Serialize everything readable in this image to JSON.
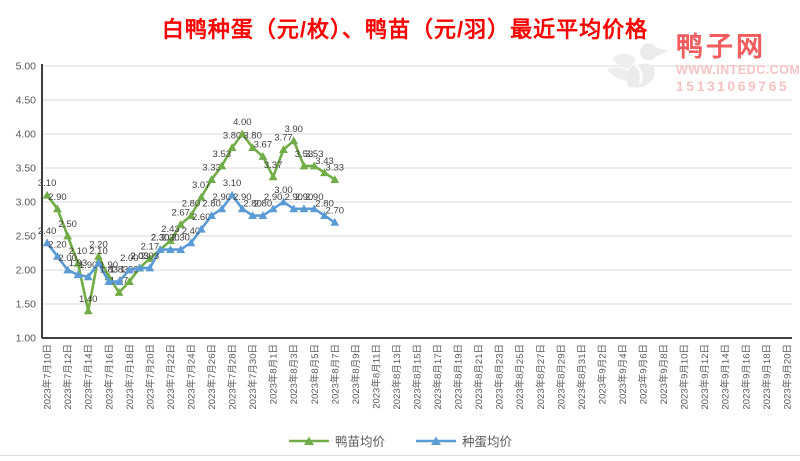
{
  "page": {
    "title": "白鸭种蛋（元/枚）、鸭苗（元/羽）最近平均价格"
  },
  "watermark": {
    "site_name": "鸭子网",
    "url": "WWW.INTEDC.COM",
    "phone": "15131069765",
    "logo": "duck-icon"
  },
  "colors": {
    "title_red": "#FF0000",
    "duckling_green": "#70AD47",
    "egg_blue": "#5B9BD5",
    "gridline": "#D9D9D9",
    "axis": "#262626",
    "axis_text": "#595959",
    "data_label_text": "#3f3f3f",
    "watermark_red": "#f25c5c",
    "watermark_pink": "#f6c3c3"
  },
  "chart_data": {
    "type": "line",
    "title": "白鸭种蛋（元/枚）、鸭苗（元/羽）最近平均价格",
    "ylabel": "",
    "xlabel": "",
    "ylim": [
      1.0,
      5.0
    ],
    "ytick_step": 0.5,
    "ytick_labels": [
      "5.00",
      "4.50",
      "4.00",
      "3.50",
      "3.00",
      "2.50",
      "2.00",
      "1.50",
      "1.00"
    ],
    "grid": true,
    "legend_position": "bottom",
    "total_categories": 73,
    "xtick_interval": 2,
    "xtick_labels": [
      "2023年7月10日",
      "2023年7月12日",
      "2023年7月14日",
      "2023年7月16日",
      "2023年7月18日",
      "2023年7月20日",
      "2023年7月22日",
      "2023年7月24日",
      "2023年7月26日",
      "2023年7月28日",
      "2023年7月30日",
      "2023年8月1日",
      "2023年8月3日",
      "2023年8月5日",
      "2023年8月7日",
      "2023年8月9日",
      "2023年8月11日",
      "2023年8月13日",
      "2023年8月15日",
      "2023年8月17日",
      "2023年8月19日",
      "2023年8月21日",
      "2023年8月23日",
      "2023年8月25日",
      "2023年8月27日",
      "2023年8月29日",
      "2023年8月31日",
      "2023年9月2日",
      "2023年9月4日",
      "2023年9月6日",
      "2023年9月8日",
      "2023年9月10日",
      "2023年9月12日",
      "2023年9月14日",
      "2023年9月16日",
      "2023年9月18日",
      "2023年9月20日"
    ],
    "data_start_category": 0,
    "series": [
      {
        "name": "鸭苗均价",
        "color": "#70AD47",
        "marker": "triangle",
        "values": [
          3.1,
          2.9,
          2.5,
          2.1,
          1.4,
          2.2,
          1.9,
          1.67,
          1.83,
          2.03,
          2.17,
          2.3,
          2.43,
          2.67,
          2.8,
          3.07,
          3.33,
          3.53,
          3.8,
          4.0,
          3.8,
          3.67,
          3.37,
          3.77,
          3.9,
          3.53,
          3.53,
          3.43,
          3.33
        ]
      },
      {
        "name": "种蛋均价",
        "color": "#5B9BD5",
        "marker": "triangle",
        "values": [
          2.4,
          2.2,
          2.0,
          1.93,
          1.9,
          2.1,
          1.83,
          1.83,
          2.0,
          2.03,
          2.03,
          2.3,
          2.3,
          2.3,
          2.4,
          2.6,
          2.8,
          2.9,
          3.1,
          2.9,
          2.8,
          2.8,
          2.9,
          3.0,
          2.9,
          2.9,
          2.9,
          2.8,
          2.7
        ]
      }
    ]
  },
  "legend": {
    "items": [
      {
        "label": "鸭苗均价"
      },
      {
        "label": "种蛋均价"
      }
    ]
  }
}
